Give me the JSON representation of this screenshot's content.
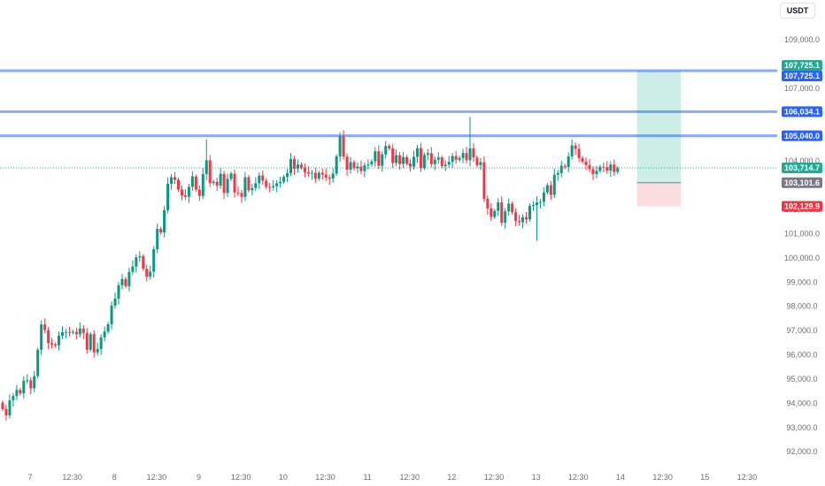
{
  "currency": "USDT",
  "chart_data": {
    "type": "candlestick",
    "y_axis": {
      "ticks": [
        "109,000.0",
        "108,000.0",
        "107,000.0",
        "106,000.0",
        "105,000.0",
        "104,000.0",
        "103,000.0",
        "102,000.0",
        "101,000.0",
        "100,000.0",
        "99,000.0",
        "98,000.0",
        "97,000.0",
        "96,000.0",
        "95,000.0",
        "94,000.0",
        "93,000.0",
        "92,000.0"
      ],
      "tick_values": [
        109000,
        108000,
        107000,
        106000,
        105000,
        104000,
        103000,
        102000,
        101000,
        100000,
        99000,
        98000,
        97000,
        96000,
        95000,
        94000,
        93000,
        92000
      ],
      "ylim": [
        91600,
        110300
      ]
    },
    "x_axis": {
      "labels": [
        "7",
        "12:30",
        "8",
        "12:30",
        "9",
        "12:30",
        "10",
        "12:30",
        "11",
        "12:30",
        "12",
        "12:30",
        "13",
        "12:30",
        "14",
        "12:30",
        "15",
        "12:30"
      ],
      "label_index": [
        0,
        12,
        24,
        36,
        48,
        60,
        72,
        84,
        96,
        108,
        120,
        132,
        144,
        156,
        168,
        180,
        192,
        204
      ],
      "total_slots": 212
    },
    "candles": [
      [
        94030,
        93760
      ],
      [
        93760,
        93500
      ],
      [
        93500,
        94120
      ],
      [
        94120,
        94300
      ],
      [
        94300,
        94550
      ],
      [
        94550,
        94410
      ],
      [
        94410,
        94930
      ],
      [
        94930,
        94950
      ],
      [
        94950,
        94620
      ],
      [
        94620,
        95120
      ],
      [
        95120,
        96210
      ],
      [
        96210,
        97250
      ],
      [
        97250,
        97020
      ],
      [
        97020,
        96480
      ],
      [
        96480,
        96420
      ],
      [
        96420,
        96390
      ],
      [
        96390,
        96790
      ],
      [
        96790,
        96930
      ],
      [
        96930,
        96940
      ],
      [
        96940,
        96930
      ],
      [
        96930,
        96950
      ],
      [
        96950,
        96850
      ],
      [
        96850,
        97090
      ],
      [
        97090,
        96900
      ],
      [
        96900,
        96210
      ],
      [
        96210,
        96850
      ],
      [
        96850,
        96100
      ],
      [
        96100,
        96240
      ],
      [
        96240,
        96720
      ],
      [
        96720,
        96960
      ],
      [
        96960,
        97260
      ],
      [
        97260,
        98030
      ],
      [
        98030,
        98320
      ],
      [
        98320,
        98870
      ],
      [
        98870,
        99130
      ],
      [
        99130,
        98830
      ],
      [
        98830,
        99420
      ],
      [
        99420,
        99640
      ],
      [
        99640,
        100020
      ],
      [
        100020,
        100070
      ],
      [
        100070,
        99550
      ],
      [
        99550,
        99230
      ],
      [
        99230,
        99430
      ],
      [
        99430,
        100360
      ],
      [
        100360,
        101200
      ],
      [
        101200,
        101050
      ],
      [
        101050,
        101970
      ],
      [
        101970,
        103060
      ],
      [
        103060,
        103330
      ],
      [
        103330,
        103220
      ],
      [
        103220,
        102820
      ],
      [
        102820,
        102580
      ],
      [
        102580,
        102520
      ],
      [
        102520,
        102930
      ],
      [
        102930,
        103360
      ],
      [
        103360,
        102820
      ],
      [
        102820,
        102560
      ],
      [
        102560,
        103460
      ],
      [
        103460,
        104030
      ],
      [
        104030,
        103090
      ],
      [
        103090,
        103140
      ],
      [
        103140,
        102980
      ],
      [
        102980,
        103470
      ],
      [
        103470,
        102680
      ],
      [
        102680,
        103260
      ],
      [
        103260,
        103480
      ],
      [
        103480,
        102700
      ],
      [
        102700,
        102680
      ],
      [
        102680,
        102520
      ],
      [
        102520,
        103330
      ],
      [
        103330,
        102790
      ],
      [
        102790,
        102880
      ],
      [
        102880,
        103080
      ],
      [
        103080,
        103400
      ],
      [
        103400,
        103190
      ],
      [
        103190,
        102930
      ],
      [
        102930,
        102910
      ],
      [
        102910,
        102960
      ],
      [
        102960,
        103080
      ],
      [
        103080,
        103140
      ],
      [
        103140,
        103340
      ],
      [
        103340,
        103500
      ],
      [
        103500,
        104080
      ],
      [
        104080,
        103680
      ],
      [
        103680,
        103850
      ],
      [
        103850,
        103730
      ],
      [
        103730,
        103530
      ],
      [
        103530,
        103480
      ],
      [
        103480,
        103510
      ],
      [
        103510,
        103270
      ],
      [
        103270,
        103510
      ],
      [
        103510,
        103440
      ],
      [
        103440,
        103310
      ],
      [
        103310,
        103270
      ],
      [
        103270,
        103480
      ],
      [
        103480,
        104190
      ],
      [
        104190,
        105020
      ],
      [
        105020,
        104180
      ],
      [
        104180,
        103640
      ],
      [
        103640,
        103950
      ],
      [
        103950,
        103700
      ],
      [
        103700,
        103770
      ],
      [
        103770,
        103580
      ],
      [
        103580,
        103820
      ],
      [
        103820,
        103860
      ],
      [
        103860,
        103980
      ],
      [
        103980,
        104400
      ],
      [
        104400,
        103800
      ],
      [
        103800,
        104270
      ],
      [
        104270,
        104620
      ],
      [
        104620,
        104520
      ],
      [
        104520,
        103920
      ],
      [
        103920,
        104240
      ],
      [
        104240,
        103880
      ],
      [
        103880,
        104160
      ],
      [
        104160,
        103900
      ],
      [
        103900,
        103770
      ],
      [
        103770,
        104170
      ],
      [
        104170,
        104530
      ],
      [
        104530,
        103710
      ],
      [
        103710,
        104250
      ],
      [
        104250,
        104320
      ],
      [
        104320,
        103870
      ],
      [
        103870,
        104050
      ],
      [
        104050,
        104150
      ],
      [
        104150,
        103790
      ],
      [
        103790,
        103850
      ],
      [
        103850,
        103960
      ],
      [
        103960,
        104200
      ],
      [
        104200,
        104050
      ],
      [
        104050,
        104120
      ],
      [
        104120,
        104330
      ],
      [
        104330,
        104030
      ],
      [
        104030,
        104520
      ],
      [
        104520,
        104140
      ],
      [
        104140,
        103830
      ],
      [
        103830,
        103950
      ],
      [
        103950,
        102440
      ],
      [
        102440,
        102040
      ],
      [
        102040,
        101690
      ],
      [
        101690,
        101940
      ],
      [
        101940,
        102290
      ],
      [
        102290,
        101450
      ],
      [
        101450,
        101920
      ],
      [
        101920,
        102240
      ],
      [
        102240,
        101880
      ],
      [
        101880,
        101520
      ],
      [
        101520,
        101470
      ],
      [
        101470,
        101680
      ],
      [
        101680,
        101590
      ],
      [
        101590,
        102150
      ],
      [
        102150,
        102180
      ],
      [
        102180,
        102290
      ],
      [
        102290,
        102310
      ],
      [
        102310,
        102700
      ],
      [
        102700,
        103000
      ],
      [
        103000,
        102600
      ],
      [
        102600,
        103430
      ],
      [
        103430,
        103500
      ],
      [
        103500,
        103800
      ],
      [
        103800,
        103750
      ],
      [
        103750,
        104190
      ],
      [
        104190,
        104640
      ],
      [
        104640,
        104500
      ],
      [
        104500,
        104120
      ],
      [
        104120,
        103970
      ],
      [
        103970,
        103830
      ],
      [
        103830,
        103660
      ],
      [
        103660,
        103460
      ],
      [
        103460,
        103590
      ],
      [
        103590,
        103760
      ],
      [
        103760,
        103740
      ],
      [
        103740,
        103600
      ],
      [
        103600,
        103850
      ],
      [
        103850,
        103550
      ],
      [
        103550,
        103700
      ]
    ],
    "horizontal_lines": [
      107725.1,
      106034.1,
      105040.0
    ],
    "current_price": 103714.7,
    "position": {
      "type": "long",
      "entry": 103101.6,
      "target": 107725.1,
      "stop": 102129.9,
      "start_index": 181,
      "end_index": 193
    },
    "price_labels": [
      {
        "text": "107,725.1",
        "value": 107725.1,
        "color": "#22ab94",
        "offset": -6
      },
      {
        "text": "107,725.1",
        "value": 107725.1,
        "color": "#2962ff",
        "offset": 6
      },
      {
        "text": "106,034.1",
        "value": 106034.1,
        "color": "#2962ff",
        "offset": 0
      },
      {
        "text": "105,040.0",
        "value": 105040.0,
        "color": "#2962ff",
        "offset": 0
      },
      {
        "text": "103,714.7",
        "value": 103714.7,
        "color": "#22ab94",
        "offset": 0
      },
      {
        "text": "103,101.6",
        "value": 103101.6,
        "color": "#787b86",
        "offset": 0
      },
      {
        "text": "102,129.9",
        "value": 102129.9,
        "color": "#f23645",
        "offset": 0
      }
    ],
    "colors": {
      "up": "#089981",
      "down": "#f23645",
      "hline": "#2962ff",
      "target_zone": "#cdeee6",
      "stop_zone": "#fbdde0",
      "current_line": "#22ab94"
    },
    "grid": false
  }
}
